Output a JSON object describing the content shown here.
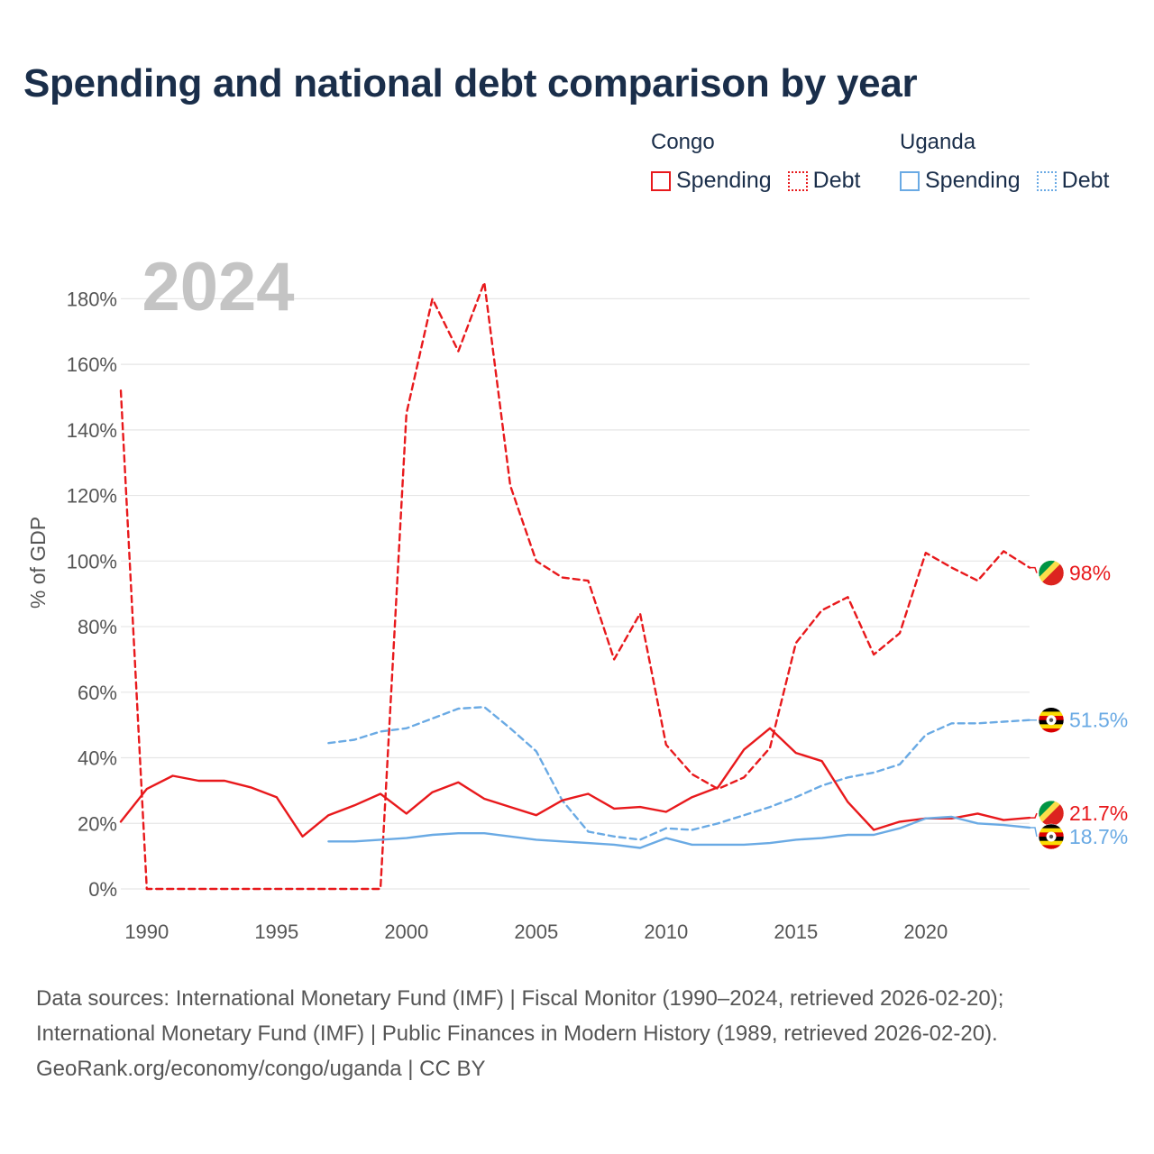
{
  "title": "Spending and national debt comparison by year",
  "year_label": "2024",
  "legend": {
    "groups": [
      {
        "country": "Congo",
        "spending_label": "Spending",
        "debt_label": "Debt",
        "color": "#e8191c"
      },
      {
        "country": "Uganda",
        "spending_label": "Spending",
        "debt_label": "Debt",
        "color": "#6aaae4"
      }
    ]
  },
  "sources": {
    "line1": "Data sources: International Monetary Fund (IMF) | Fiscal Monitor (1990–2024, retrieved 2026-02-20);",
    "line2": "International Monetary Fund (IMF) | Public Finances in Modern History (1989, retrieved 2026-02-20).",
    "line3": "GeoRank.org/economy/congo/uganda | CC BY"
  },
  "chart_data": {
    "type": "line",
    "title": "Spending and national debt comparison by year",
    "xlabel": "",
    "ylabel": "% of GDP",
    "xlim": [
      1989,
      2024
    ],
    "ylim": [
      0,
      190
    ],
    "yticks": [
      0,
      20,
      40,
      60,
      80,
      100,
      120,
      140,
      160,
      180
    ],
    "ytick_labels": [
      "0%",
      "20%",
      "40%",
      "60%",
      "80%",
      "100%",
      "120%",
      "140%",
      "160%",
      "180%"
    ],
    "xticks": [
      1990,
      1995,
      2000,
      2005,
      2010,
      2015,
      2020
    ],
    "xtick_labels": [
      "1990",
      "1995",
      "2000",
      "2005",
      "2010",
      "2015",
      "2020"
    ],
    "series": [
      {
        "name": "Congo Debt",
        "country": "Congo",
        "metric": "Debt",
        "style": "dashed",
        "color": "#e8191c",
        "end_label": "98%",
        "x": [
          1989,
          1990,
          1991,
          1992,
          1993,
          1994,
          1995,
          1996,
          1997,
          1998,
          1999,
          2000,
          2001,
          2002,
          2003,
          2004,
          2005,
          2006,
          2007,
          2008,
          2009,
          2010,
          2011,
          2012,
          2013,
          2014,
          2015,
          2016,
          2017,
          2018,
          2019,
          2020,
          2021,
          2022,
          2023,
          2024
        ],
        "y": [
          152,
          0,
          0,
          0,
          0,
          0,
          0,
          0,
          0,
          0,
          0,
          145,
          180,
          164,
          185,
          123,
          100,
          95,
          94,
          70,
          84,
          44,
          35,
          30.5,
          34,
          43,
          75,
          85,
          89,
          71.5,
          78,
          102.5,
          98,
          94,
          103,
          98
        ]
      },
      {
        "name": "Uganda Debt",
        "country": "Uganda",
        "metric": "Debt",
        "style": "dashed",
        "color": "#6aaae4",
        "end_label": "51.5%",
        "x": [
          1997,
          1998,
          1999,
          2000,
          2001,
          2002,
          2003,
          2004,
          2005,
          2006,
          2007,
          2008,
          2009,
          2010,
          2011,
          2012,
          2013,
          2014,
          2015,
          2016,
          2017,
          2018,
          2019,
          2020,
          2021,
          2022,
          2023,
          2024
        ],
        "y": [
          44.5,
          45.5,
          48,
          49,
          52,
          55,
          55.5,
          49,
          42,
          27,
          17.5,
          16,
          15,
          18.5,
          18,
          20,
          22.5,
          25,
          28,
          31.5,
          34,
          35.5,
          38,
          47,
          50.5,
          50.5,
          51,
          51.5
        ]
      },
      {
        "name": "Congo Spending",
        "country": "Congo",
        "metric": "Spending",
        "style": "solid",
        "color": "#e8191c",
        "end_label": "21.7%",
        "x": [
          1989,
          1990,
          1991,
          1992,
          1993,
          1994,
          1995,
          1996,
          1997,
          1998,
          1999,
          2000,
          2001,
          2002,
          2003,
          2004,
          2005,
          2006,
          2007,
          2008,
          2009,
          2010,
          2011,
          2012,
          2013,
          2014,
          2015,
          2016,
          2017,
          2018,
          2019,
          2020,
          2021,
          2022,
          2023,
          2024
        ],
        "y": [
          20.5,
          30.5,
          34.5,
          33,
          33,
          31,
          28,
          16,
          22.5,
          25.5,
          29,
          23,
          29.5,
          32.5,
          27.5,
          25,
          22.5,
          27,
          29,
          24.5,
          25,
          23.5,
          28,
          31,
          42.5,
          49,
          41.5,
          39,
          26.5,
          18,
          20.5,
          21.5,
          21.5,
          23,
          21,
          21.7
        ]
      },
      {
        "name": "Uganda Spending",
        "country": "Uganda",
        "metric": "Spending",
        "style": "solid",
        "color": "#6aaae4",
        "end_label": "18.7%",
        "x": [
          1997,
          1998,
          1999,
          2000,
          2001,
          2002,
          2003,
          2004,
          2005,
          2006,
          2007,
          2008,
          2009,
          2010,
          2011,
          2012,
          2013,
          2014,
          2015,
          2016,
          2017,
          2018,
          2019,
          2020,
          2021,
          2022,
          2023,
          2024
        ],
        "y": [
          14.5,
          14.5,
          15,
          15.5,
          16.5,
          17,
          17,
          16,
          15,
          14.5,
          14,
          13.5,
          12.5,
          15.5,
          13.5,
          13.5,
          13.5,
          14,
          15,
          15.5,
          16.5,
          16.5,
          18.5,
          21.5,
          22,
          20,
          19.5,
          18.7
        ]
      }
    ]
  }
}
